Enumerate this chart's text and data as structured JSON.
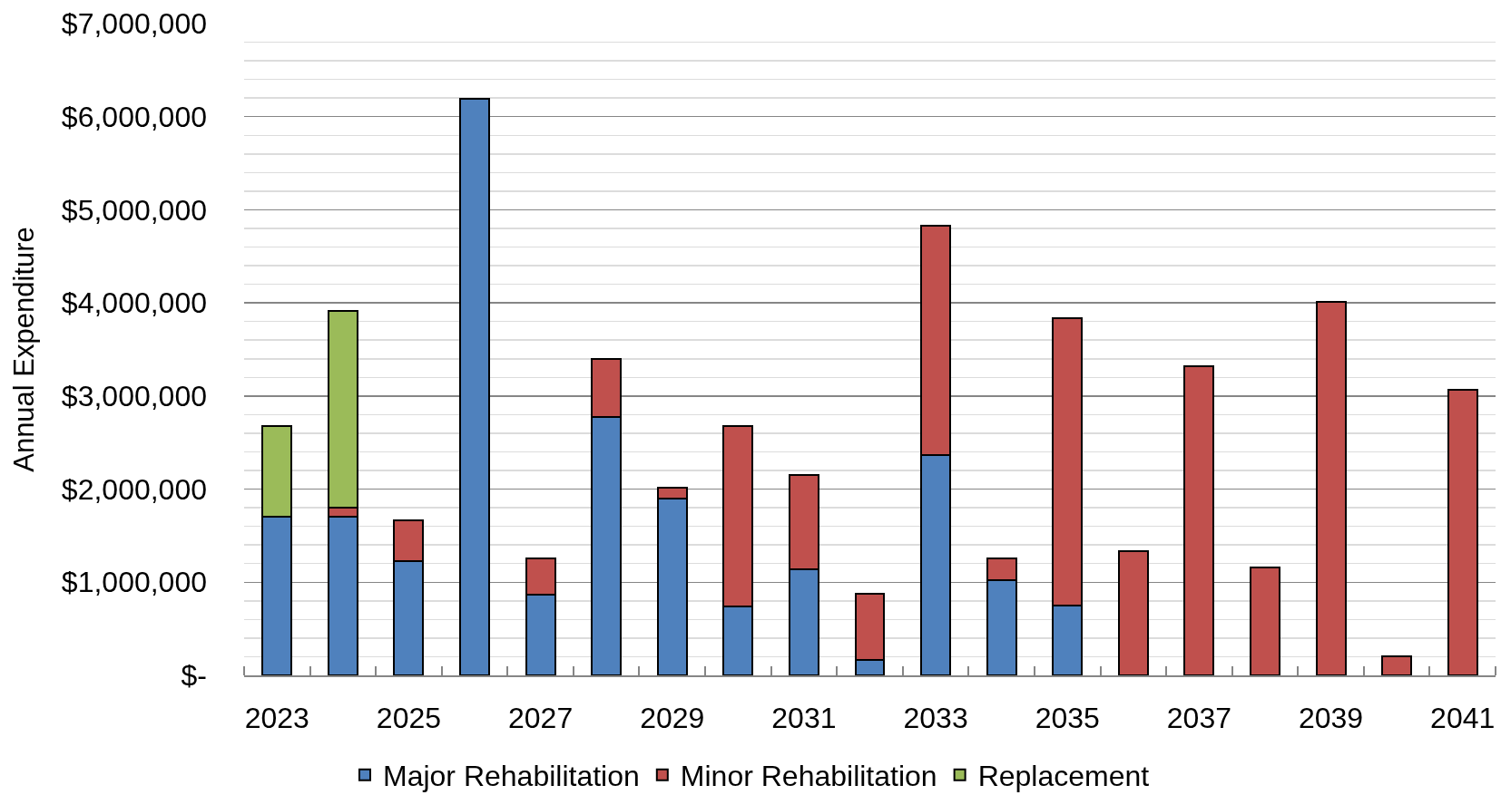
{
  "chart_data": {
    "type": "bar",
    "ylabel": "Annual Expenditure",
    "categories": [
      "2023",
      null,
      "2025",
      null,
      "2027",
      null,
      "2029",
      null,
      "2031",
      null,
      "2033",
      null,
      "2035",
      null,
      "2037",
      null,
      "2039",
      null,
      "2041"
    ],
    "series": [
      {
        "name": "Major Rehabilitation",
        "color": "#4f81bd",
        "values": [
          1700000,
          1700000,
          1230000,
          6190000,
          870000,
          2770000,
          1900000,
          740000,
          1140000,
          170000,
          2370000,
          1020000,
          750000,
          null,
          null,
          null,
          null,
          null,
          null
        ]
      },
      {
        "name": "Minor Rehabilitation",
        "color": "#c0504d",
        "values": [
          null,
          100000,
          430000,
          null,
          390000,
          630000,
          120000,
          1940000,
          1010000,
          710000,
          2460000,
          240000,
          3090000,
          1330000,
          3320000,
          1160000,
          4010000,
          200000,
          3070000
        ]
      },
      {
        "name": "Replacement",
        "color": "#9bbb59",
        "values": [
          980000,
          2110000,
          null,
          null,
          null,
          null,
          null,
          null,
          null,
          null,
          null,
          null,
          null,
          null,
          null,
          null,
          null,
          null,
          null
        ]
      }
    ],
    "stacked": true,
    "ylim": [
      0,
      7000000
    ],
    "yticks": [
      {
        "value": 0,
        "label": "$-"
      },
      {
        "value": 200000,
        "label": null
      },
      {
        "value": 400000,
        "label": null
      },
      {
        "value": 600000,
        "label": null
      },
      {
        "value": 800000,
        "label": null
      },
      {
        "value": 1000000,
        "label": "$1,000,000"
      },
      {
        "value": 1200000,
        "label": null
      },
      {
        "value": 1400000,
        "label": null
      },
      {
        "value": 1600000,
        "label": null
      },
      {
        "value": 1800000,
        "label": null
      },
      {
        "value": 2000000,
        "label": "$2,000,000"
      },
      {
        "value": 2200000,
        "label": null
      },
      {
        "value": 2400000,
        "label": null
      },
      {
        "value": 2600000,
        "label": null
      },
      {
        "value": 2800000,
        "label": null
      },
      {
        "value": 3000000,
        "label": "$3,000,000"
      },
      {
        "value": 3200000,
        "label": null
      },
      {
        "value": 3400000,
        "label": null
      },
      {
        "value": 3600000,
        "label": null
      },
      {
        "value": 3800000,
        "label": null
      },
      {
        "value": 4000000,
        "label": "$4,000,000"
      },
      {
        "value": 4200000,
        "label": null
      },
      {
        "value": 4400000,
        "label": null
      },
      {
        "value": 4600000,
        "label": null
      },
      {
        "value": 4800000,
        "label": null
      },
      {
        "value": 5000000,
        "label": "$5,000,000"
      },
      {
        "value": 5200000,
        "label": null
      },
      {
        "value": 5400000,
        "label": null
      },
      {
        "value": 5600000,
        "label": null
      },
      {
        "value": 5800000,
        "label": null
      },
      {
        "value": 6000000,
        "label": "$6,000,000"
      },
      {
        "value": 6200000,
        "label": null
      },
      {
        "value": 6400000,
        "label": null
      },
      {
        "value": 6600000,
        "label": null
      },
      {
        "value": 6800000,
        "label": null
      },
      {
        "value": 7000000,
        "label": "$7,000,000"
      }
    ],
    "grid": "y",
    "legend": "bottom"
  }
}
